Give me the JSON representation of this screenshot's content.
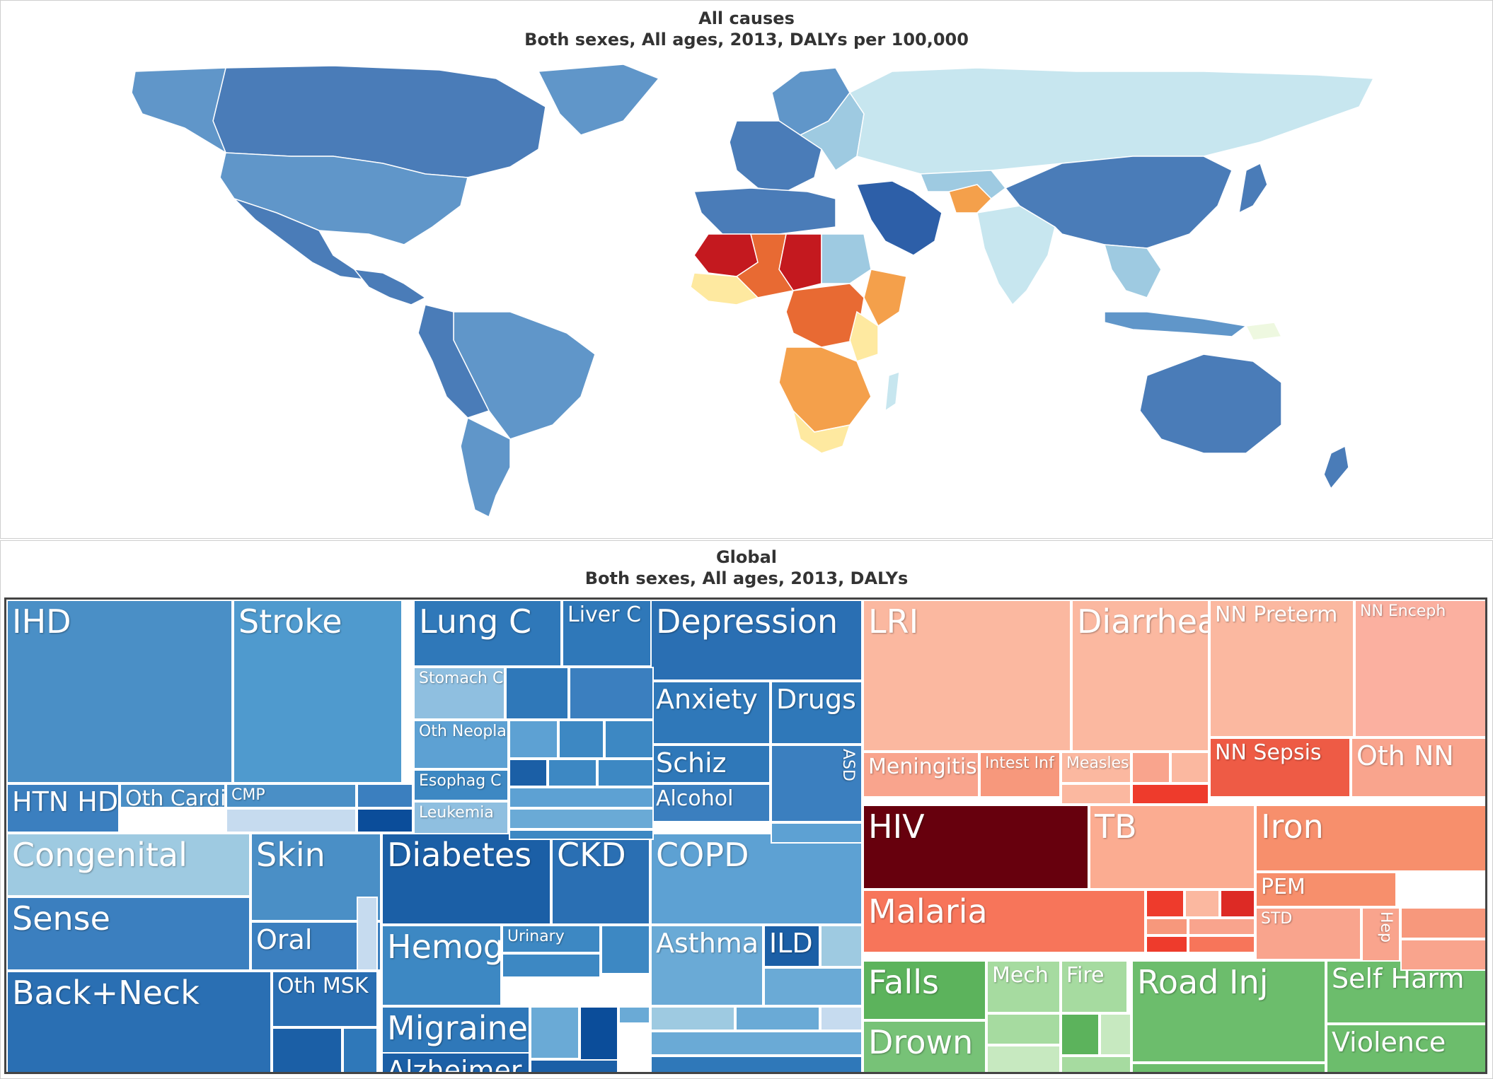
{
  "map": {
    "title": "All causes",
    "subtitle": "Both sexes, All ages, 2013, DALYs per 100,000",
    "colors": {
      "lightest": "#c7e6ef",
      "light": "#9ecae1",
      "mid": "#6096c9",
      "dark": "#4a7cb8",
      "darker": "#2d5fa8",
      "pale_yellow": "#fee9a0",
      "orange": "#f4a04b",
      "dark_orange": "#e86a33",
      "red": "#c4191f",
      "dark_red": "#a40f14",
      "ocean": "#ffffff"
    }
  },
  "treemap": {
    "title": "Global",
    "subtitle": "Both sexes, All ages, 2013, DALYs",
    "tiles": [
      {
        "label": "IHD",
        "color": "#4a8fc6",
        "size": "big"
      },
      {
        "label": "Stroke",
        "color": "#4f9ace",
        "size": "big"
      },
      {
        "label": "HTN HD",
        "color": "#3b7fbf",
        "size": "mid"
      },
      {
        "label": "Oth Cardio",
        "color": "#4a8fc6",
        "size": "small"
      },
      {
        "label": "CMP",
        "color": "#4a8fc6",
        "size": "xs"
      },
      {
        "label": "Lung C",
        "color": "#2f78b9",
        "size": "big"
      },
      {
        "label": "Liver C",
        "color": "#2f78b9",
        "size": "small"
      },
      {
        "label": "Stomach C",
        "color": "#8fbfe0",
        "size": "xs"
      },
      {
        "label": "Oth Neopla",
        "color": "#5da1d3",
        "size": "xs"
      },
      {
        "label": "Esophag C",
        "color": "#3d88c3",
        "size": "xs"
      },
      {
        "label": "Leukemia",
        "color": "#8fbfe0",
        "size": "xs"
      },
      {
        "label": "Depression",
        "color": "#2a6fb3",
        "size": "big"
      },
      {
        "label": "Anxiety",
        "color": "#2f78b9",
        "size": "mid"
      },
      {
        "label": "Drugs",
        "color": "#2f78b9",
        "size": "mid"
      },
      {
        "label": "Schiz",
        "color": "#2f78b9",
        "size": "mid"
      },
      {
        "label": "ASD",
        "color": "#3b7fbf",
        "size": "xs"
      },
      {
        "label": "Alcohol",
        "color": "#3b7fbf",
        "size": "small"
      },
      {
        "label": "Congenital",
        "color": "#9ecae1",
        "size": "big"
      },
      {
        "label": "Sense",
        "color": "#3b7fbf",
        "size": "big"
      },
      {
        "label": "Skin",
        "color": "#4a8fc6",
        "size": "big"
      },
      {
        "label": "Oral",
        "color": "#3b7fbf",
        "size": "mid"
      },
      {
        "label": "Diabetes",
        "color": "#1b5fa6",
        "size": "big"
      },
      {
        "label": "CKD",
        "color": "#2a6fb3",
        "size": "big"
      },
      {
        "label": "Hemog",
        "color": "#3d88c3",
        "size": "big"
      },
      {
        "label": "Urinary",
        "color": "#3d88c3",
        "size": "xs"
      },
      {
        "label": "COPD",
        "color": "#5da1d3",
        "size": "big"
      },
      {
        "label": "Asthma",
        "color": "#6aaad6",
        "size": "mid"
      },
      {
        "label": "ILD",
        "color": "#1b5fa6",
        "size": "mid"
      },
      {
        "label": "Back+Neck",
        "color": "#2a6fb3",
        "size": "big"
      },
      {
        "label": "Oth MSK",
        "color": "#2a6fb3",
        "size": "small"
      },
      {
        "label": "Migraine",
        "color": "#2f78b9",
        "size": "big"
      },
      {
        "label": "Alzheimer",
        "color": "#1b5fa6",
        "size": "mid"
      },
      {
        "label": "LRI",
        "color": "#fbb8a0",
        "size": "big"
      },
      {
        "label": "Diarrhea",
        "color": "#fbb8a0",
        "size": "big"
      },
      {
        "label": "NN Preterm",
        "color": "#fbb8a0",
        "size": "small"
      },
      {
        "label": "NN Enceph",
        "color": "#fbb0a0",
        "size": "xs"
      },
      {
        "label": "Meningitis",
        "color": "#f9a48d",
        "size": "small"
      },
      {
        "label": "Intest Inf",
        "color": "#f7987c",
        "size": "xs"
      },
      {
        "label": "Measles",
        "color": "#fbb8a0",
        "size": "xs"
      },
      {
        "label": "NN Sepsis",
        "color": "#ee5b45",
        "size": "small"
      },
      {
        "label": "Oth NN",
        "color": "#f9a48d",
        "size": "mid"
      },
      {
        "label": "HIV",
        "color": "#67000d",
        "size": "big"
      },
      {
        "label": "TB",
        "color": "#fbac91",
        "size": "big"
      },
      {
        "label": "Iron",
        "color": "#f78f6c",
        "size": "big"
      },
      {
        "label": "PEM",
        "color": "#f78f6c",
        "size": "small"
      },
      {
        "label": "Malaria",
        "color": "#f7755a",
        "size": "big"
      },
      {
        "label": "STD",
        "color": "#f9a48d",
        "size": "xs"
      },
      {
        "label": "Hep",
        "color": "#f9a48d",
        "size": "xs"
      },
      {
        "label": "Falls",
        "color": "#5cb35c",
        "size": "big"
      },
      {
        "label": "Drown",
        "color": "#77c277",
        "size": "big"
      },
      {
        "label": "Mech",
        "color": "#a6dba0",
        "size": "small"
      },
      {
        "label": "Fire",
        "color": "#a6dba0",
        "size": "small"
      },
      {
        "label": "Road Inj",
        "color": "#6cbd6c",
        "size": "big"
      },
      {
        "label": "Self Harm",
        "color": "#6cbd6c",
        "size": "mid"
      },
      {
        "label": "Violence",
        "color": "#6cbd6c",
        "size": "mid"
      }
    ]
  }
}
